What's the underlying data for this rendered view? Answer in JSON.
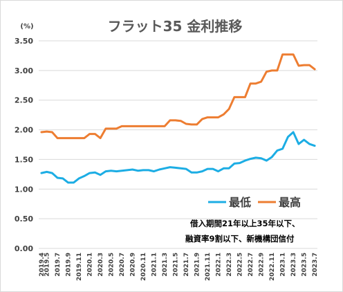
{
  "chart_data": {
    "type": "line",
    "title": "フラット35 金利推移",
    "unit_label": "(%)",
    "ylim": [
      0,
      3.5
    ],
    "yticks": [
      "0.00",
      "0.50",
      "1.00",
      "1.50",
      "2.00",
      "2.50",
      "3.00",
      "3.50"
    ],
    "grid": true,
    "legend_position": "bottom-right",
    "x": [
      "2019.4",
      "2019.5",
      "2019.6",
      "2019.7",
      "2019.8",
      "2019.9",
      "2019.10",
      "2019.11",
      "2019.12",
      "2020.1",
      "2020.2",
      "2020.3",
      "2020.4",
      "2020.5",
      "2020.6",
      "2020.7",
      "2020.8",
      "2020.9",
      "2020.10",
      "2020.11",
      "2020.12",
      "2021.1",
      "2021.2",
      "2021.3",
      "2021.4",
      "2021.5",
      "2021.6",
      "2021.7",
      "2021.8",
      "2021.9",
      "2021.10",
      "2021.11",
      "2021.12",
      "2022.1",
      "2022.2",
      "2022.3",
      "2022.4",
      "2022.5",
      "2022.6",
      "2022.7",
      "2022.8",
      "2022.9",
      "2022.10",
      "2022.11",
      "2022.12",
      "2023.1",
      "2023.2",
      "2023.3",
      "2023.4",
      "2023.5",
      "2023.6",
      "2023.7"
    ],
    "xtick_labels": [
      "2019.4",
      "2019.5",
      "2019.7",
      "2019.9",
      "2019.11",
      "2020.1",
      "2020.3",
      "2020.5",
      "2020.7",
      "2020.9",
      "2020.11",
      "2021.1",
      "2021.3",
      "2021.5",
      "2021.7",
      "2021.9",
      "2021.11",
      "2022.1",
      "2022.3",
      "2022.5",
      "2022.7",
      "2022.9",
      "2022.11",
      "2023.1",
      "2023.3",
      "2023.5",
      "2023.7"
    ],
    "series": [
      {
        "name": "最低",
        "color": "#1cade4",
        "values": [
          1.27,
          1.29,
          1.27,
          1.19,
          1.18,
          1.11,
          1.11,
          1.18,
          1.22,
          1.27,
          1.28,
          1.24,
          1.3,
          1.31,
          1.3,
          1.31,
          1.32,
          1.33,
          1.31,
          1.32,
          1.32,
          1.3,
          1.33,
          1.35,
          1.37,
          1.36,
          1.35,
          1.34,
          1.28,
          1.28,
          1.3,
          1.34,
          1.34,
          1.3,
          1.35,
          1.35,
          1.43,
          1.44,
          1.48,
          1.51,
          1.53,
          1.52,
          1.48,
          1.54,
          1.65,
          1.68,
          1.88,
          1.96,
          1.76,
          1.83,
          1.76,
          1.73
        ]
      },
      {
        "name": "最高",
        "color": "#ed7d31",
        "values": [
          1.96,
          1.97,
          1.96,
          1.86,
          1.86,
          1.86,
          1.86,
          1.86,
          1.86,
          1.93,
          1.93,
          1.86,
          2.02,
          2.02,
          2.02,
          2.06,
          2.06,
          2.06,
          2.06,
          2.06,
          2.06,
          2.06,
          2.06,
          2.06,
          2.16,
          2.16,
          2.15,
          2.1,
          2.09,
          2.09,
          2.18,
          2.21,
          2.21,
          2.21,
          2.26,
          2.35,
          2.55,
          2.55,
          2.55,
          2.78,
          2.78,
          2.81,
          2.98,
          3.0,
          3.0,
          3.27,
          3.27,
          3.27,
          3.08,
          3.09,
          3.09,
          3.02
        ]
      }
    ],
    "annotation_lines": [
      "借入期間21年以上35年以下、",
      "融資率9割以下、新機構団信付"
    ]
  }
}
